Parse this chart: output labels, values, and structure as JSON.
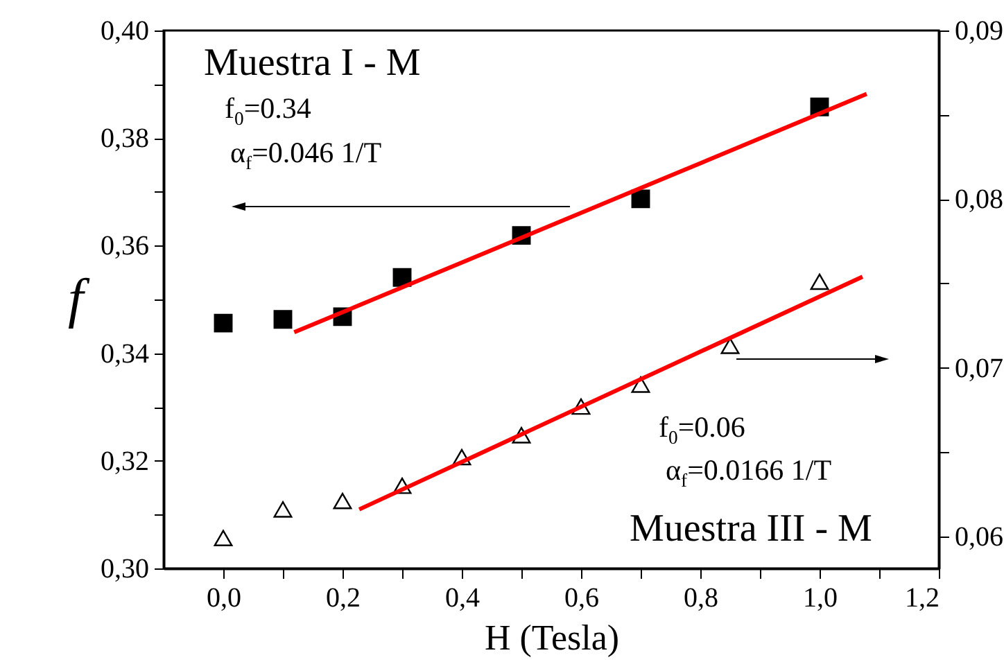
{
  "chart_data": {
    "type": "scatter",
    "xlabel": "H (Tesla)",
    "ylabel": "f",
    "xlim": [
      -0.1,
      1.2
    ],
    "xticks": [
      {
        "value": 0,
        "label": "0,0"
      },
      {
        "value": 0.1,
        "label": null
      },
      {
        "value": 0.2,
        "label": "0,2"
      },
      {
        "value": 0.3,
        "label": null
      },
      {
        "value": 0.4,
        "label": "0,4"
      },
      {
        "value": 0.5,
        "label": null
      },
      {
        "value": 0.6,
        "label": "0,6"
      },
      {
        "value": 0.7,
        "label": null
      },
      {
        "value": 0.8,
        "label": "0,8"
      },
      {
        "value": 0.9,
        "label": null
      },
      {
        "value": 1.0,
        "label": "1,0"
      },
      {
        "value": 1.1,
        "label": null
      },
      {
        "value": 1.2,
        "label": "1,2"
      }
    ],
    "ylim": [
      0.3,
      0.4
    ],
    "yticks": [
      {
        "value": 0.3,
        "label": "0,30"
      },
      {
        "value": 0.31,
        "label": null
      },
      {
        "value": 0.32,
        "label": "0,32"
      },
      {
        "value": 0.33,
        "label": null
      },
      {
        "value": 0.34,
        "label": "0,34"
      },
      {
        "value": 0.35,
        "label": null
      },
      {
        "value": 0.36,
        "label": "0,36"
      },
      {
        "value": 0.37,
        "label": null
      },
      {
        "value": 0.38,
        "label": "0,38"
      },
      {
        "value": 0.39,
        "label": null
      },
      {
        "value": 0.4,
        "label": "0,40"
      }
    ],
    "y2lim": [
      0.0581,
      0.09
    ],
    "y2ticks": [
      {
        "value": 0.06,
        "label": "0,06"
      },
      {
        "value": 0.065,
        "label": null
      },
      {
        "value": 0.07,
        "label": "0,07"
      },
      {
        "value": 0.075,
        "label": null
      },
      {
        "value": 0.08,
        "label": "0,08"
      },
      {
        "value": 0.085,
        "label": null
      },
      {
        "value": 0.09,
        "label": "0,09"
      }
    ],
    "grid": false,
    "series": [
      {
        "marker": "square",
        "color": "#000000",
        "x": [
          0,
          0.1,
          0.2,
          0.3,
          0.5,
          0.7,
          1.0
        ],
        "values": [
          0.3456,
          0.3463,
          0.3468,
          0.3541,
          0.3619,
          0.3687,
          0.3858
        ]
      },
      {
        "type": "line",
        "marker": "none",
        "color": "#ff0000",
        "x": [
          0.119,
          1.079
        ],
        "values": [
          0.3439,
          0.3882
        ]
      },
      {
        "marker": "triangle",
        "axis": "y2",
        "color": "#000000",
        "x": [
          0,
          0.1,
          0.2,
          0.3,
          0.4,
          0.5,
          0.6,
          0.7,
          0.85,
          1.0
        ],
        "values": [
          0.0599,
          0.0616,
          0.0621,
          0.063,
          0.0647,
          0.066,
          0.0677,
          0.069,
          0.0713,
          0.0751
        ]
      },
      {
        "type": "line",
        "marker": "none",
        "axis": "y2",
        "color": "#ff0000",
        "x": [
          0.228,
          1.072
        ],
        "values": [
          0.0616,
          0.0754
        ]
      }
    ],
    "annotations": [
      "Muestra I - M",
      "f$_{0}$=0.34",
      "α$_{f}$=0.046 1/T",
      "f$_{0}$=0.06",
      "α$_{f}$=0.0166 1/T",
      "Muestra III - M"
    ]
  }
}
